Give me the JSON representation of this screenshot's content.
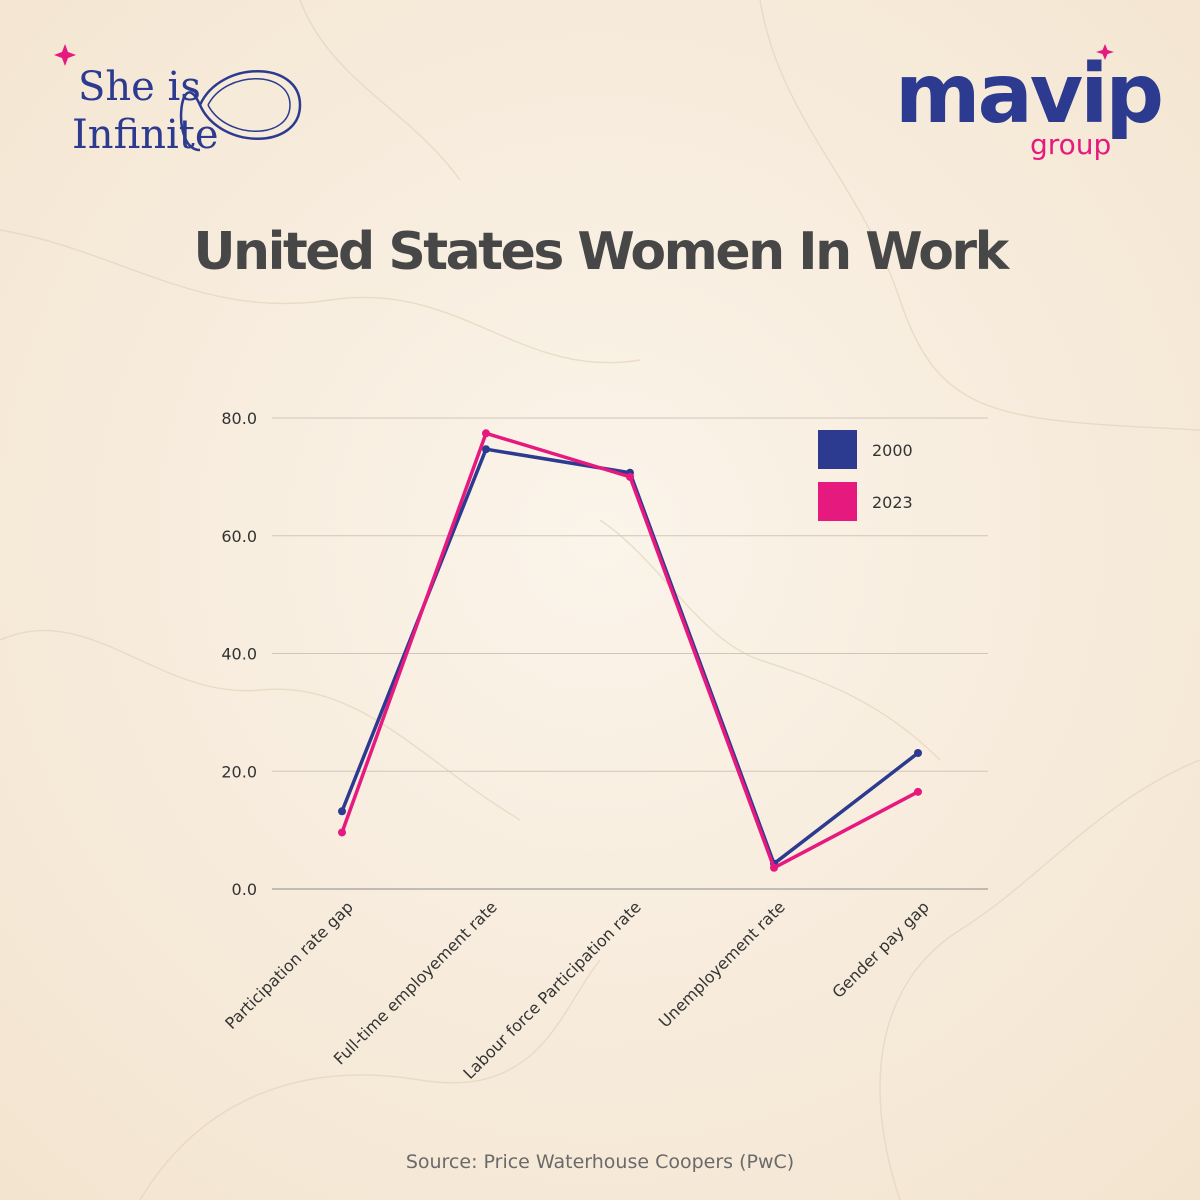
{
  "branding": {
    "left_logo": {
      "line1": "She is",
      "line2": "Infinite",
      "color": "#2c3a8f",
      "accent": "#e6197f"
    },
    "right_logo": {
      "wordmark": "mavip",
      "sub": "group",
      "color": "#2c3a8f",
      "accent": "#e6197f"
    }
  },
  "title": "United States Women In Work",
  "source": "Source: Price Waterhouse Coopers (PwC)",
  "chart_data": {
    "type": "line",
    "title": "United States Women In Work",
    "xlabel": "",
    "ylabel": "",
    "categories": [
      "Participation rate gap",
      "Full-time employement rate",
      "Labour force Participation rate",
      "Unemployement rate",
      "Gender pay gap"
    ],
    "series": [
      {
        "name": "2000",
        "color": "#2c3a8f",
        "values": [
          13.2,
          74.7,
          70.7,
          4.3,
          23.1
        ]
      },
      {
        "name": "2023",
        "color": "#e6197f",
        "values": [
          9.6,
          77.4,
          70.0,
          3.6,
          16.5
        ]
      }
    ],
    "ylim": [
      0,
      80
    ],
    "yticks": [
      "0.0",
      "20.0",
      "40.0",
      "60.0",
      "80.0"
    ],
    "grid": true,
    "legend": "top-right"
  }
}
